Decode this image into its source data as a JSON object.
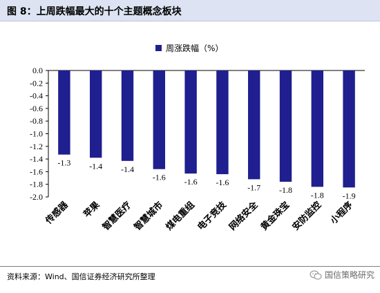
{
  "title": "图  8：上周跌幅最大的十个主题概念板块",
  "source": "资料来源：Wind、国信证券经济研究所整理",
  "watermark": "国信策略研究",
  "colors": {
    "bar": "#1f1f8f",
    "title_bg": "#dde3f2",
    "axis": "#000000"
  },
  "chart_data": {
    "type": "bar",
    "categories": [
      "传感器",
      "苹果",
      "智慧医疗",
      "智慧城市",
      "煤电重组",
      "电子竞技",
      "网络安全",
      "黄金珠宝",
      "安防监控",
      "小程序"
    ],
    "series": [
      {
        "name": "周涨跌幅（%）",
        "values": [
          -1.33,
          -1.38,
          -1.43,
          -1.56,
          -1.63,
          -1.64,
          -1.72,
          -1.76,
          -1.84,
          -1.85
        ],
        "labels": [
          "-1.3",
          "-1.4",
          "-1.4",
          "-1.6",
          "-1.6",
          "-1.6",
          "-1.7",
          "-1.8",
          "-1.8",
          "-1.9"
        ]
      }
    ],
    "ylim": [
      -2.0,
      0.0
    ],
    "yticks": [
      "0.0",
      "-0.2",
      "-0.4",
      "-0.6",
      "-0.8",
      "-1.0",
      "-1.2",
      "-1.4",
      "-1.6",
      "-1.8",
      "-2.0"
    ],
    "legend_position": "top-center",
    "grid": false
  }
}
